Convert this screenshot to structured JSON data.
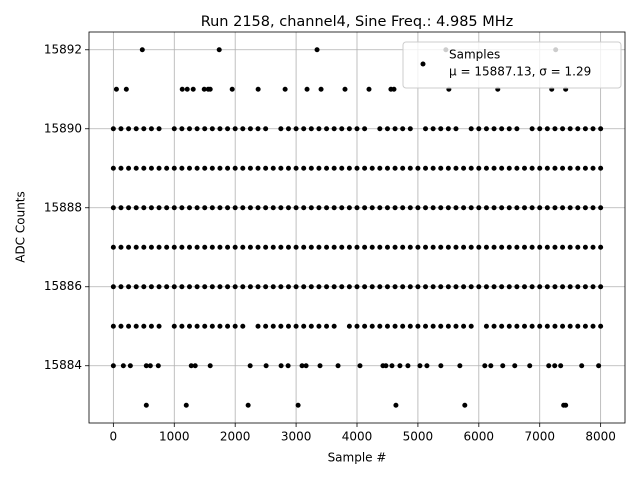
{
  "chart_data": {
    "type": "scatter",
    "title": "Run 2158, channel4, Sine Freq.: 4.985 MHz",
    "x_label": "Sample #",
    "y_label": "ADC Counts",
    "legend_note": "μ = 15887.13, σ = 1.29",
    "legend": "upper right",
    "grid": true,
    "xlim": [
      -400,
      8400
    ],
    "xticks": [
      0,
      1000,
      2000,
      3000,
      4000,
      5000,
      6000,
      7000,
      8000
    ],
    "ylim": [
      15882.55,
      15892.45
    ],
    "yticks": [
      15884,
      15886,
      15888,
      15890,
      15892
    ],
    "series": [
      {
        "name": "Samples",
        "color": "#000000",
        "x": [
          475,
          1738,
          3344,
          5459,
          7262,
          50,
          213,
          1131,
          1213,
          1311,
          1492,
          1557,
          1590,
          1951,
          2377,
          2820,
          3180,
          3410,
          3803,
          4197,
          4557,
          4607,
          5508,
          6311,
          7197,
          7426,
          0,
          125,
          250,
          375,
          500,
          625,
          750,
          1000,
          1125,
          1250,
          1375,
          1500,
          1625,
          1750,
          1875,
          2000,
          2125,
          2250,
          2375,
          2500,
          2750,
          2875,
          3000,
          3125,
          3250,
          3375,
          3500,
          3625,
          3750,
          3875,
          4000,
          4125,
          4375,
          4500,
          4625,
          4750,
          4875,
          5125,
          5250,
          5375,
          5500,
          5625,
          5875,
          6000,
          6125,
          6250,
          6375,
          6500,
          6625,
          6875,
          7000,
          7125,
          7250,
          7375,
          7500,
          7625,
          7750,
          7875,
          8000,
          0,
          125,
          250,
          375,
          500,
          625,
          750,
          875,
          1000,
          1125,
          1250,
          1375,
          1500,
          1625,
          1750,
          1875,
          2000,
          2125,
          2250,
          2375,
          2500,
          2625,
          2750,
          2875,
          3000,
          3125,
          3250,
          3375,
          3500,
          3625,
          3750,
          3875,
          4000,
          4125,
          4250,
          4375,
          4500,
          4625,
          4750,
          4875,
          5000,
          5125,
          5250,
          5375,
          5500,
          5625,
          5750,
          5875,
          6000,
          6125,
          6250,
          6375,
          6500,
          6625,
          6750,
          6875,
          7000,
          7125,
          7250,
          7375,
          7500,
          7625,
          7750,
          7875,
          8000,
          0,
          125,
          250,
          375,
          500,
          625,
          750,
          875,
          1000,
          1125,
          1250,
          1375,
          1500,
          1625,
          1750,
          1875,
          2000,
          2125,
          2250,
          2375,
          2500,
          2625,
          2750,
          2875,
          3000,
          3125,
          3250,
          3375,
          3500,
          3625,
          3750,
          3875,
          4000,
          4125,
          4250,
          4375,
          4500,
          4625,
          4750,
          4875,
          5000,
          5125,
          5250,
          5375,
          5500,
          5625,
          5750,
          5875,
          6000,
          6125,
          6250,
          6375,
          6500,
          6625,
          6750,
          6875,
          7000,
          7125,
          7250,
          7375,
          7500,
          7625,
          7750,
          7875,
          8000,
          0,
          125,
          250,
          375,
          500,
          625,
          750,
          875,
          1000,
          1125,
          1250,
          1375,
          1500,
          1625,
          1750,
          1875,
          2000,
          2125,
          2250,
          2375,
          2500,
          2625,
          2750,
          2875,
          3000,
          3125,
          3250,
          3375,
          3500,
          3625,
          3750,
          3875,
          4000,
          4125,
          4250,
          4375,
          4500,
          4625,
          4750,
          4875,
          5000,
          5125,
          5250,
          5375,
          5500,
          5625,
          5750,
          5875,
          6000,
          6125,
          6250,
          6375,
          6500,
          6625,
          6750,
          6875,
          7000,
          7125,
          7250,
          7375,
          7500,
          7625,
          7750,
          7875,
          8000,
          0,
          125,
          250,
          375,
          500,
          625,
          750,
          875,
          1000,
          1125,
          1250,
          1375,
          1500,
          1625,
          1750,
          1875,
          2000,
          2125,
          2250,
          2375,
          2500,
          2625,
          2750,
          2875,
          3000,
          3125,
          3250,
          3375,
          3500,
          3625,
          3750,
          3875,
          4000,
          4125,
          4250,
          4375,
          4500,
          4625,
          4750,
          4875,
          5000,
          5125,
          5250,
          5375,
          5500,
          5625,
          5750,
          5875,
          6000,
          6125,
          6250,
          6375,
          6500,
          6625,
          6750,
          6875,
          7000,
          7125,
          7250,
          7375,
          7500,
          7625,
          7750,
          7875,
          8000,
          0,
          125,
          250,
          375,
          500,
          625,
          750,
          1000,
          1125,
          1250,
          1375,
          1500,
          1625,
          1750,
          1875,
          2000,
          2125,
          2375,
          2500,
          2625,
          2750,
          2875,
          3000,
          3125,
          3250,
          3375,
          3500,
          3625,
          3875,
          4000,
          4125,
          4250,
          4375,
          4500,
          4625,
          4750,
          4875,
          5000,
          5125,
          5250,
          5375,
          5500,
          5625,
          5750,
          5875,
          6125,
          6250,
          6375,
          6500,
          6625,
          6750,
          6875,
          7000,
          7125,
          7250,
          7375,
          7500,
          7625,
          7750,
          7875,
          8000,
          0,
          164,
          279,
          541,
          607,
          738,
          1279,
          1344,
          1590,
          2246,
          2508,
          2754,
          2869,
          3098,
          3164,
          3393,
          3689,
          4049,
          4426,
          4475,
          4574,
          4705,
          4836,
          5033,
          5148,
          5377,
          5689,
          6098,
          6197,
          6393,
          6590,
          6836,
          7148,
          7246,
          7344,
          7689,
          7967,
          541,
          1197,
          2213,
          3033,
          4639,
          5770,
          7393,
          7426
        ],
        "values": [
          15892,
          15892,
          15892,
          15892,
          15892,
          15891,
          15891,
          15891,
          15891,
          15891,
          15891,
          15891,
          15891,
          15891,
          15891,
          15891,
          15891,
          15891,
          15891,
          15891,
          15891,
          15891,
          15891,
          15891,
          15891,
          15891,
          15890,
          15890,
          15890,
          15890,
          15890,
          15890,
          15890,
          15890,
          15890,
          15890,
          15890,
          15890,
          15890,
          15890,
          15890,
          15890,
          15890,
          15890,
          15890,
          15890,
          15890,
          15890,
          15890,
          15890,
          15890,
          15890,
          15890,
          15890,
          15890,
          15890,
          15890,
          15890,
          15890,
          15890,
          15890,
          15890,
          15890,
          15890,
          15890,
          15890,
          15890,
          15890,
          15890,
          15890,
          15890,
          15890,
          15890,
          15890,
          15890,
          15890,
          15890,
          15890,
          15890,
          15890,
          15890,
          15890,
          15890,
          15890,
          15890,
          15889,
          15889,
          15889,
          15889,
          15889,
          15889,
          15889,
          15889,
          15889,
          15889,
          15889,
          15889,
          15889,
          15889,
          15889,
          15889,
          15889,
          15889,
          15889,
          15889,
          15889,
          15889,
          15889,
          15889,
          15889,
          15889,
          15889,
          15889,
          15889,
          15889,
          15889,
          15889,
          15889,
          15889,
          15889,
          15889,
          15889,
          15889,
          15889,
          15889,
          15889,
          15889,
          15889,
          15889,
          15889,
          15889,
          15889,
          15889,
          15889,
          15889,
          15889,
          15889,
          15889,
          15889,
          15889,
          15889,
          15889,
          15889,
          15889,
          15889,
          15889,
          15889,
          15889,
          15889,
          15889,
          15888,
          15888,
          15888,
          15888,
          15888,
          15888,
          15888,
          15888,
          15888,
          15888,
          15888,
          15888,
          15888,
          15888,
          15888,
          15888,
          15888,
          15888,
          15888,
          15888,
          15888,
          15888,
          15888,
          15888,
          15888,
          15888,
          15888,
          15888,
          15888,
          15888,
          15888,
          15888,
          15888,
          15888,
          15888,
          15888,
          15888,
          15888,
          15888,
          15888,
          15888,
          15888,
          15888,
          15888,
          15888,
          15888,
          15888,
          15888,
          15888,
          15888,
          15888,
          15888,
          15888,
          15888,
          15888,
          15888,
          15888,
          15888,
          15888,
          15888,
          15888,
          15888,
          15888,
          15888,
          15888,
          15887,
          15887,
          15887,
          15887,
          15887,
          15887,
          15887,
          15887,
          15887,
          15887,
          15887,
          15887,
          15887,
          15887,
          15887,
          15887,
          15887,
          15887,
          15887,
          15887,
          15887,
          15887,
          15887,
          15887,
          15887,
          15887,
          15887,
          15887,
          15887,
          15887,
          15887,
          15887,
          15887,
          15887,
          15887,
          15887,
          15887,
          15887,
          15887,
          15887,
          15887,
          15887,
          15887,
          15887,
          15887,
          15887,
          15887,
          15887,
          15887,
          15887,
          15887,
          15887,
          15887,
          15887,
          15887,
          15887,
          15887,
          15887,
          15887,
          15887,
          15887,
          15887,
          15887,
          15887,
          15887,
          15886,
          15886,
          15886,
          15886,
          15886,
          15886,
          15886,
          15886,
          15886,
          15886,
          15886,
          15886,
          15886,
          15886,
          15886,
          15886,
          15886,
          15886,
          15886,
          15886,
          15886,
          15886,
          15886,
          15886,
          15886,
          15886,
          15886,
          15886,
          15886,
          15886,
          15886,
          15886,
          15886,
          15886,
          15886,
          15886,
          15886,
          15886,
          15886,
          15886,
          15886,
          15886,
          15886,
          15886,
          15886,
          15886,
          15886,
          15886,
          15886,
          15886,
          15886,
          15886,
          15886,
          15886,
          15886,
          15886,
          15886,
          15886,
          15886,
          15886,
          15886,
          15886,
          15886,
          15886,
          15886,
          15885,
          15885,
          15885,
          15885,
          15885,
          15885,
          15885,
          15885,
          15885,
          15885,
          15885,
          15885,
          15885,
          15885,
          15885,
          15885,
          15885,
          15885,
          15885,
          15885,
          15885,
          15885,
          15885,
          15885,
          15885,
          15885,
          15885,
          15885,
          15885,
          15885,
          15885,
          15885,
          15885,
          15885,
          15885,
          15885,
          15885,
          15885,
          15885,
          15885,
          15885,
          15885,
          15885,
          15885,
          15885,
          15885,
          15885,
          15885,
          15885,
          15885,
          15885,
          15885,
          15885,
          15885,
          15885,
          15885,
          15885,
          15885,
          15885,
          15885,
          15885,
          15884,
          15884,
          15884,
          15884,
          15884,
          15884,
          15884,
          15884,
          15884,
          15884,
          15884,
          15884,
          15884,
          15884,
          15884,
          15884,
          15884,
          15884,
          15884,
          15884,
          15884,
          15884,
          15884,
          15884,
          15884,
          15884,
          15884,
          15884,
          15884,
          15884,
          15884,
          15884,
          15884,
          15884,
          15884,
          15884,
          15884,
          15883,
          15883,
          15883,
          15883,
          15883,
          15883,
          15883,
          15883
        ]
      }
    ]
  }
}
